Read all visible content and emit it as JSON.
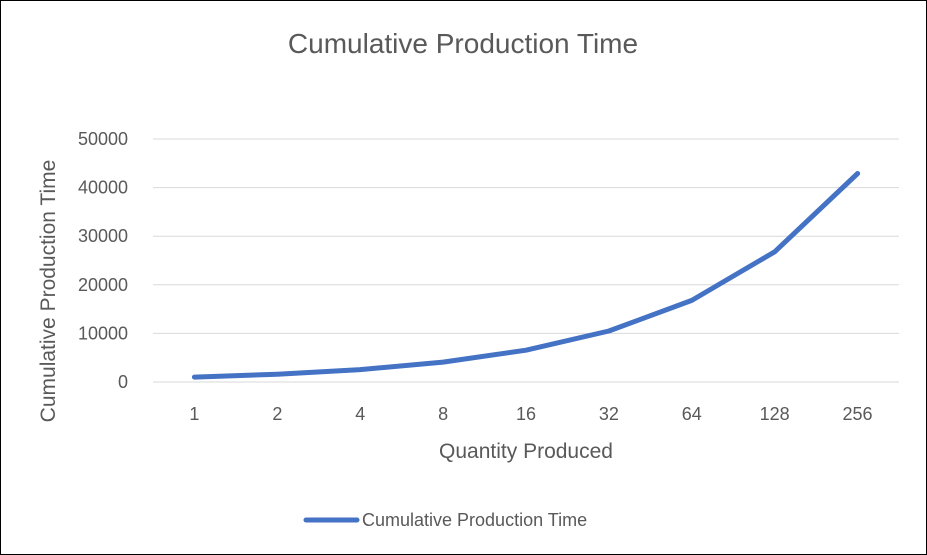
{
  "chart_data": {
    "type": "line",
    "title": "Cumulative Production Time",
    "xlabel": "Quantity Produced",
    "ylabel": "Cumulative Production Time",
    "categories": [
      "1",
      "2",
      "4",
      "8",
      "16",
      "32",
      "64",
      "128",
      "256"
    ],
    "series": [
      {
        "name": "Cumulative Production Time",
        "color": "#4472c4",
        "values": [
          1000,
          1600,
          2560,
          4100,
          6550,
          10500,
          16800,
          26800,
          42900
        ]
      }
    ],
    "ylim": [
      0,
      50000
    ],
    "yticks": [
      "0",
      "10000",
      "20000",
      "30000",
      "40000",
      "50000"
    ],
    "grid": true,
    "legend_position": "bottom"
  }
}
